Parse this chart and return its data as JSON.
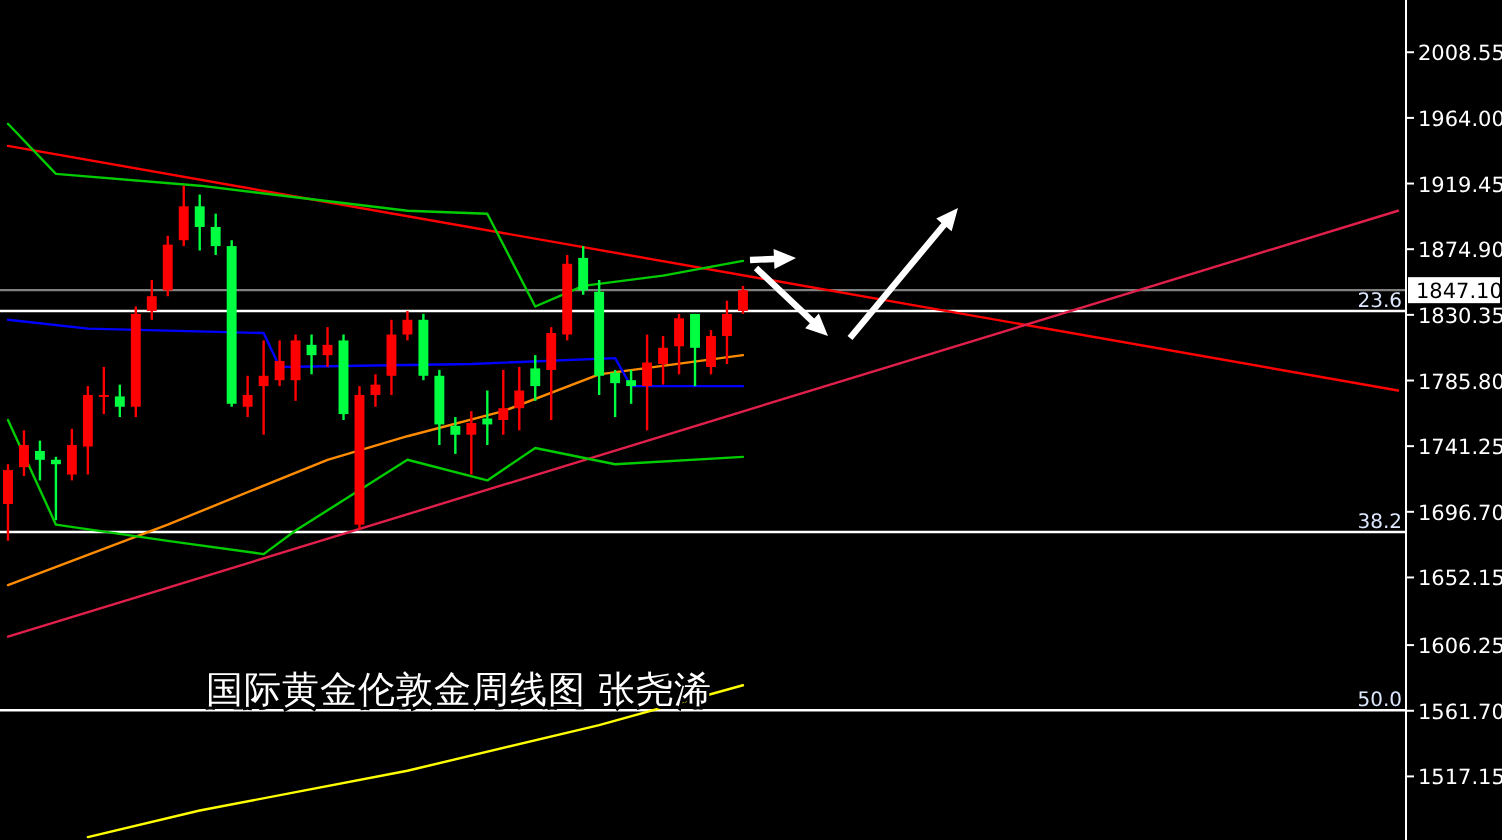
{
  "chart_data": {
    "type": "candlestick",
    "tick_labels": "y",
    "annotations": [
      "国际黄金伦敦金周线图  张尧浠",
      {
        "text": "23.6",
        "y": 1833
      },
      {
        "text": "38.2",
        "y": 1683
      },
      {
        "text": "50.0",
        "y": 1562
      }
    ],
    "categories": [
      null,
      null,
      null,
      null,
      null,
      null,
      null,
      null,
      null,
      null,
      null,
      null,
      null,
      null,
      null,
      null,
      null,
      null,
      null,
      null,
      null,
      null,
      null,
      null,
      null,
      null,
      null,
      null,
      null,
      null,
      null,
      null,
      null,
      null,
      null,
      null,
      null,
      null,
      null,
      null,
      null,
      null,
      null,
      null,
      null,
      null,
      null,
      null,
      null,
      null,
      null,
      null,
      null,
      null,
      null,
      null,
      null,
      null,
      null,
      null,
      null,
      null,
      null,
      null,
      null,
      null,
      null,
      null,
      null,
      null,
      null,
      null,
      null,
      null,
      null,
      null,
      null,
      null,
      null,
      null,
      null,
      null,
      null,
      null,
      null,
      null,
      null,
      null
    ],
    "ohlc": [
      [
        1702,
        1729,
        1677,
        1725
      ],
      [
        1727,
        1752,
        1721,
        1742
      ],
      [
        1738,
        1745,
        1718,
        1732
      ],
      [
        1732,
        1734,
        1691,
        1729
      ],
      [
        1722,
        1753,
        1718,
        1742
      ],
      [
        1741,
        1782,
        1722,
        1776
      ],
      [
        1775,
        1795,
        1763,
        1776
      ],
      [
        1775,
        1783,
        1761,
        1768
      ],
      [
        1768,
        1836,
        1761,
        1831
      ],
      [
        1833,
        1854,
        1827,
        1843
      ],
      [
        1847,
        1884,
        1843,
        1878
      ],
      [
        1881,
        1918,
        1877,
        1904
      ],
      [
        1904,
        1912,
        1874,
        1890
      ],
      [
        1890,
        1899,
        1871,
        1877
      ],
      [
        1877,
        1881,
        1768,
        1770
      ],
      [
        1768,
        1789,
        1761,
        1776
      ],
      [
        1782,
        1813,
        1749,
        1789
      ],
      [
        1786,
        1813,
        1782,
        1799
      ],
      [
        1786,
        1817,
        1772,
        1813
      ],
      [
        1810,
        1817,
        1790,
        1803
      ],
      [
        1803,
        1822,
        1795,
        1810
      ],
      [
        1813,
        1817,
        1759,
        1763
      ],
      [
        1688,
        1782,
        1685,
        1776
      ],
      [
        1776,
        1790,
        1768,
        1783
      ],
      [
        1789,
        1827,
        1776,
        1817
      ],
      [
        1817,
        1833,
        1813,
        1827
      ],
      [
        1827,
        1831,
        1786,
        1789
      ],
      [
        1789,
        1793,
        1742,
        1756
      ],
      [
        1755,
        1761,
        1736,
        1749
      ],
      [
        1749,
        1765,
        1722,
        1757
      ],
      [
        1760,
        1779,
        1742,
        1756
      ],
      [
        1759,
        1793,
        1749,
        1767
      ],
      [
        1767,
        1795,
        1752,
        1779
      ],
      [
        1794,
        1803,
        1772,
        1782
      ],
      [
        1793,
        1822,
        1759,
        1818
      ],
      [
        1817,
        1871,
        1813,
        1865
      ],
      [
        1869,
        1877,
        1844,
        1847
      ],
      [
        1846,
        1854,
        1776,
        1789
      ],
      [
        1791,
        1793,
        1761,
        1784
      ],
      [
        1786,
        1793,
        1770,
        1782
      ],
      [
        1782,
        1817,
        1752,
        1798
      ],
      [
        1797,
        1816,
        1783,
        1808
      ],
      [
        1809,
        1831,
        1790,
        1828
      ],
      [
        1831,
        1831,
        1782,
        1808
      ],
      [
        1795,
        1820,
        1790,
        1816
      ],
      [
        1816,
        1840,
        1797,
        1831
      ],
      [
        1833,
        1850,
        1831,
        1847.1
      ],
      null,
      null,
      null,
      null,
      null,
      null,
      null,
      null,
      null,
      null,
      null,
      null,
      null,
      null,
      null,
      null,
      null,
      null,
      null,
      null,
      null,
      null,
      null,
      null,
      null,
      null,
      null,
      null,
      null,
      null,
      null,
      null,
      null,
      null,
      null,
      null,
      null,
      null,
      null,
      null,
      null
    ],
    "ylim": [
      1474,
      2044
    ],
    "yticks": [
      2008.55,
      {
        "value": 1964,
        "label": "1964.00"
      },
      1919.45,
      {
        "value": 1874.9,
        "label": "1874.90"
      },
      1830.35,
      {
        "value": 1785.8,
        "label": "1785.80"
      },
      1741.25,
      {
        "value": 1696.7,
        "label": "1696.70"
      },
      1652.15,
      1606.25,
      {
        "value": 1561.7,
        "label": "1561.70"
      },
      1517.15
    ],
    "series": [
      {
        "type": "line",
        "color": "#ff0000",
        "values": [
          1945,
          null,
          null,
          null,
          null,
          null,
          null,
          null,
          null,
          null,
          null,
          null,
          null,
          null,
          null,
          null,
          null,
          null,
          null,
          null,
          null,
          null,
          null,
          null,
          null,
          null,
          null,
          null,
          null,
          null,
          null,
          null,
          null,
          null,
          null,
          null,
          null,
          null,
          null,
          null,
          null,
          null,
          null,
          null,
          null,
          null,
          null,
          null,
          null,
          null,
          null,
          null,
          null,
          null,
          null,
          null,
          null,
          null,
          null,
          null,
          null,
          null,
          null,
          null,
          null,
          null,
          null,
          null,
          null,
          null,
          null,
          null,
          null,
          null,
          null,
          null,
          null,
          null,
          null,
          null,
          null,
          null,
          null,
          null,
          null,
          null,
          null,
          1779
        ]
      },
      {
        "type": "line",
        "color": "#e0204a",
        "values": [
          1612,
          null,
          null,
          null,
          null,
          null,
          null,
          null,
          null,
          null,
          null,
          null,
          null,
          null,
          null,
          null,
          null,
          null,
          null,
          null,
          null,
          null,
          null,
          null,
          null,
          null,
          null,
          null,
          null,
          null,
          null,
          null,
          null,
          null,
          null,
          null,
          null,
          null,
          null,
          null,
          null,
          null,
          null,
          null,
          null,
          null,
          null,
          null,
          null,
          null,
          null,
          null,
          null,
          null,
          null,
          null,
          null,
          null,
          null,
          null,
          null,
          null,
          null,
          null,
          null,
          null,
          null,
          null,
          null,
          null,
          null,
          null,
          null,
          null,
          null,
          null,
          null,
          null,
          null,
          null,
          null,
          null,
          null,
          null,
          null,
          null,
          null,
          1901
        ]
      },
      {
        "type": "line",
        "color": "#ffff00",
        "values": [
          null,
          null,
          null,
          null,
          null,
          1476,
          null,
          null,
          null,
          null,
          null,
          null,
          1494,
          null,
          null,
          null,
          null,
          null,
          null,
          null,
          null,
          null,
          null,
          null,
          null,
          1521,
          null,
          null,
          null,
          null,
          null,
          null,
          null,
          null,
          null,
          null,
          null,
          1552,
          null,
          null,
          null,
          null,
          null,
          null,
          null,
          null,
          1579,
          null,
          null,
          null,
          null,
          null,
          null,
          null,
          null,
          null,
          null,
          null,
          null,
          null,
          null,
          null,
          null,
          null,
          null,
          null,
          null,
          null,
          null,
          null,
          null,
          null,
          null,
          null,
          null,
          null,
          null,
          null,
          null,
          null,
          null,
          null,
          null,
          null,
          null,
          null,
          null,
          null
        ]
      },
      {
        "type": "line",
        "color": "#ff8c00",
        "values": [
          1647,
          null,
          null,
          null,
          null,
          null,
          null,
          null,
          null,
          null,
          1688,
          null,
          null,
          null,
          null,
          null,
          null,
          null,
          null,
          null,
          1732,
          null,
          null,
          null,
          null,
          1748,
          null,
          null,
          null,
          null,
          null,
          1765,
          null,
          null,
          null,
          null,
          null,
          1790,
          null,
          null,
          null,
          null,
          null,
          null,
          null,
          null,
          1803,
          null,
          null,
          null,
          null,
          null,
          null,
          null,
          null,
          null,
          null,
          null,
          null,
          null,
          null,
          null,
          null,
          null,
          null,
          null,
          null,
          null,
          null,
          null,
          null,
          null,
          null,
          null,
          null,
          null,
          null,
          null,
          null,
          null,
          null,
          null,
          null,
          null,
          null,
          null,
          null,
          null
        ]
      },
      {
        "type": "line",
        "color": "#0000ff",
        "values": [
          1827,
          null,
          null,
          null,
          null,
          1821,
          null,
          null,
          null,
          null,
          null,
          null,
          null,
          null,
          null,
          null,
          1818,
          1795,
          null,
          null,
          null,
          null,
          null,
          null,
          null,
          null,
          null,
          null,
          null,
          1797,
          null,
          null,
          null,
          null,
          null,
          null,
          null,
          null,
          1801,
          1782,
          null,
          null,
          null,
          null,
          null,
          null,
          1782,
          null,
          null,
          null,
          null,
          null,
          null,
          null,
          null,
          null,
          null,
          null,
          null,
          null,
          null,
          null,
          null,
          null,
          null,
          null,
          null,
          null,
          null,
          null,
          null,
          null,
          null,
          null,
          null,
          null,
          null,
          null,
          null,
          null,
          null,
          null,
          null,
          null,
          null,
          null,
          null,
          null
        ]
      },
      {
        "type": "line",
        "color": "#00cc00",
        "values": [
          1759,
          null,
          null,
          1688,
          null,
          null,
          null,
          null,
          null,
          null,
          1677,
          null,
          null,
          null,
          null,
          null,
          1668,
          null,
          1684,
          null,
          null,
          null,
          null,
          null,
          null,
          1732,
          null,
          null,
          null,
          null,
          1718,
          null,
          null,
          1740,
          null,
          null,
          null,
          null,
          1729,
          null,
          null,
          null,
          null,
          null,
          null,
          null,
          1734,
          null,
          null,
          null,
          null,
          null,
          null,
          null,
          null,
          null,
          null,
          null,
          null,
          null,
          null,
          null,
          null,
          null,
          null,
          null,
          null,
          null,
          null,
          null,
          null,
          null,
          null,
          null,
          null,
          null,
          null,
          null,
          null,
          null,
          null,
          null,
          null,
          null,
          null,
          null,
          null,
          null
        ]
      },
      {
        "type": "line",
        "color": "#00cc00",
        "values": [
          1960,
          null,
          null,
          1926,
          null,
          null,
          null,
          null,
          null,
          null,
          null,
          null,
          1918,
          null,
          null,
          null,
          null,
          null,
          null,
          null,
          null,
          null,
          null,
          null,
          null,
          1901,
          null,
          null,
          null,
          null,
          1899,
          null,
          null,
          1836,
          null,
          null,
          1850,
          null,
          null,
          null,
          null,
          1857,
          null,
          null,
          null,
          null,
          1867,
          null,
          null,
          null,
          null,
          null,
          null,
          null,
          null,
          null,
          null,
          null,
          null,
          null,
          null,
          null,
          null,
          null,
          null,
          null,
          null,
          null,
          null,
          null,
          null,
          null,
          null,
          null,
          null,
          null,
          null,
          null,
          null,
          null,
          null,
          null,
          null,
          null,
          null,
          null,
          null,
          null
        ]
      }
    ],
    "ref_lines": [
      {
        "axis": "y",
        "value": 1847.1,
        "label": "1847.10",
        "color": "#808080"
      },
      {
        "axis": "y",
        "value": 1833,
        "color": "#ffffff"
      },
      {
        "axis": "y",
        "value": 1683,
        "color": "#ffffff"
      },
      {
        "axis": "y",
        "value": 1562,
        "color": "#ffffff"
      }
    ]
  }
}
